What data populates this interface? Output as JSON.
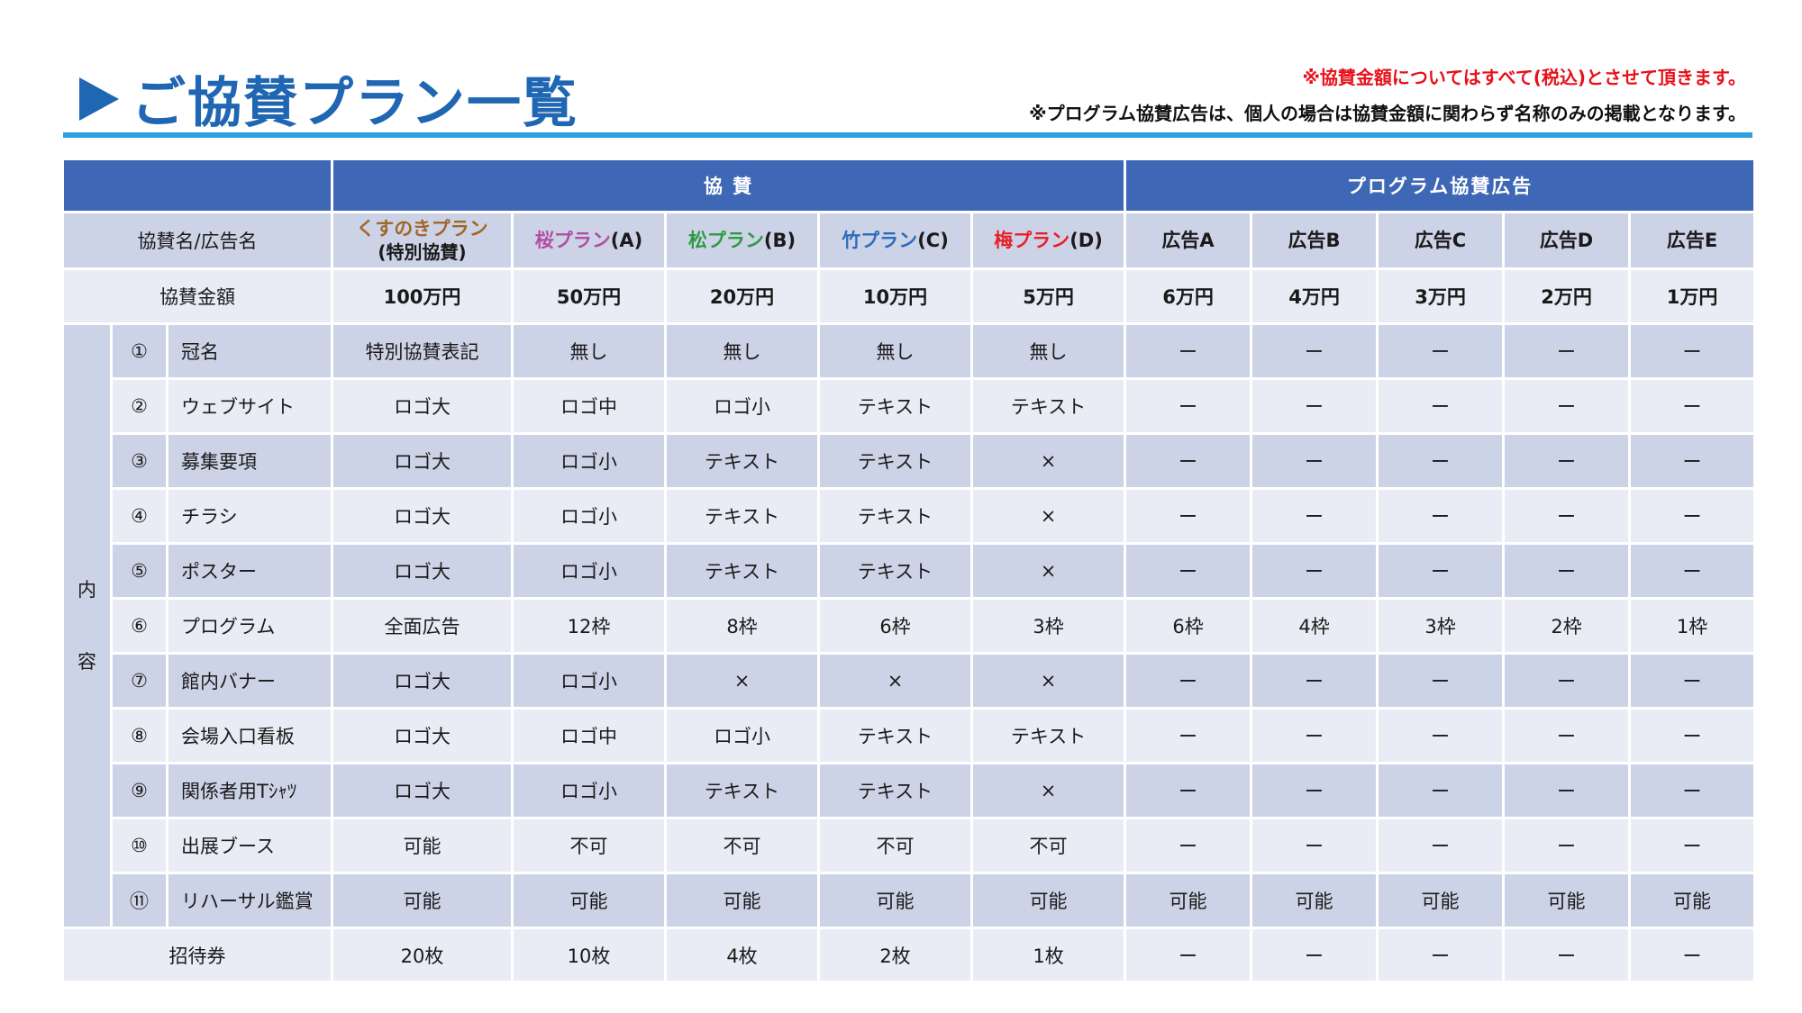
{
  "header": {
    "title": "ご協賛プラン一覧",
    "note_red": "※協賛金額についてはすべて(税込)とさせて頂きます。",
    "note_black": "※プログラム協賛広告は、個人の場合は協賛金額に関わらず名称のみの掲載となります。"
  },
  "colors": {
    "title_blue": "#1f66b3",
    "rule_blue": "#2e9fe0",
    "header_blue": "#3e68b6",
    "row_dark": "#cdd3e7",
    "row_light": "#e9ecf5",
    "note_red": "#e8101a",
    "kusunoki": "#a0682a",
    "sakura": "#b24ea4",
    "matsu": "#2d9a44",
    "take": "#2f6cbc",
    "ume": "#e8202a"
  },
  "table": {
    "group_sponsor": "協 賛",
    "group_ad": "プログラム協賛広告",
    "row_name_label": "協賛名/広告名",
    "row_price_label": "協賛金額",
    "content_label": [
      "内",
      "容"
    ],
    "plans": [
      {
        "name": "くすのきプラン",
        "sub": "(特別協賛)",
        "price": "100万円"
      },
      {
        "name": "桜プラン",
        "suffix": "(A)",
        "price": "50万円"
      },
      {
        "name": "松プラン",
        "suffix": "(B)",
        "price": "20万円"
      },
      {
        "name": "竹プラン",
        "suffix": "(C)",
        "price": "10万円"
      },
      {
        "name": "梅プラン",
        "suffix": "(D)",
        "price": "5万円"
      }
    ],
    "ads": [
      {
        "name": "広告A",
        "price": "6万円"
      },
      {
        "name": "広告B",
        "price": "4万円"
      },
      {
        "name": "広告C",
        "price": "3万円"
      },
      {
        "name": "広告D",
        "price": "2万円"
      },
      {
        "name": "広告E",
        "price": "1万円"
      }
    ],
    "items": [
      {
        "num": "①",
        "label": "冠名",
        "values": [
          "特別協賛表記",
          "無し",
          "無し",
          "無し",
          "無し",
          "ー",
          "ー",
          "ー",
          "ー",
          "ー"
        ]
      },
      {
        "num": "②",
        "label": "ウェブサイト",
        "values": [
          "ロゴ大",
          "ロゴ中",
          "ロゴ小",
          "テキスト",
          "テキスト",
          "ー",
          "ー",
          "ー",
          "ー",
          "ー"
        ]
      },
      {
        "num": "③",
        "label": "募集要項",
        "values": [
          "ロゴ大",
          "ロゴ小",
          "テキスト",
          "テキスト",
          "×",
          "ー",
          "ー",
          "ー",
          "ー",
          "ー"
        ]
      },
      {
        "num": "④",
        "label": "チラシ",
        "values": [
          "ロゴ大",
          "ロゴ小",
          "テキスト",
          "テキスト",
          "×",
          "ー",
          "ー",
          "ー",
          "ー",
          "ー"
        ]
      },
      {
        "num": "⑤",
        "label": "ポスター",
        "values": [
          "ロゴ大",
          "ロゴ小",
          "テキスト",
          "テキスト",
          "×",
          "ー",
          "ー",
          "ー",
          "ー",
          "ー"
        ]
      },
      {
        "num": "⑥",
        "label": "プログラム",
        "values": [
          "全面広告",
          "12枠",
          "8枠",
          "6枠",
          "3枠",
          "6枠",
          "4枠",
          "3枠",
          "2枠",
          "1枠"
        ]
      },
      {
        "num": "⑦",
        "label": "館内バナー",
        "values": [
          "ロゴ大",
          "ロゴ小",
          "×",
          "×",
          "×",
          "ー",
          "ー",
          "ー",
          "ー",
          "ー"
        ]
      },
      {
        "num": "⑧",
        "label": "会場入口看板",
        "values": [
          "ロゴ大",
          "ロゴ中",
          "ロゴ小",
          "テキスト",
          "テキスト",
          "ー",
          "ー",
          "ー",
          "ー",
          "ー"
        ]
      },
      {
        "num": "⑨",
        "label": "関係者用Tｼｬﾂ",
        "values": [
          "ロゴ大",
          "ロゴ小",
          "テキスト",
          "テキスト",
          "×",
          "ー",
          "ー",
          "ー",
          "ー",
          "ー"
        ]
      },
      {
        "num": "⑩",
        "label": "出展ブース",
        "values": [
          "可能",
          "不可",
          "不可",
          "不可",
          "不可",
          "ー",
          "ー",
          "ー",
          "ー",
          "ー"
        ]
      },
      {
        "num": "⑪",
        "label": "リハーサル鑑賞",
        "values": [
          "可能",
          "可能",
          "可能",
          "可能",
          "可能",
          "可能",
          "可能",
          "可能",
          "可能",
          "可能"
        ]
      }
    ],
    "ticket": {
      "label": "招待券",
      "values": [
        "20枚",
        "10枚",
        "4枚",
        "2枚",
        "1枚",
        "ー",
        "ー",
        "ー",
        "ー",
        "ー"
      ]
    }
  }
}
